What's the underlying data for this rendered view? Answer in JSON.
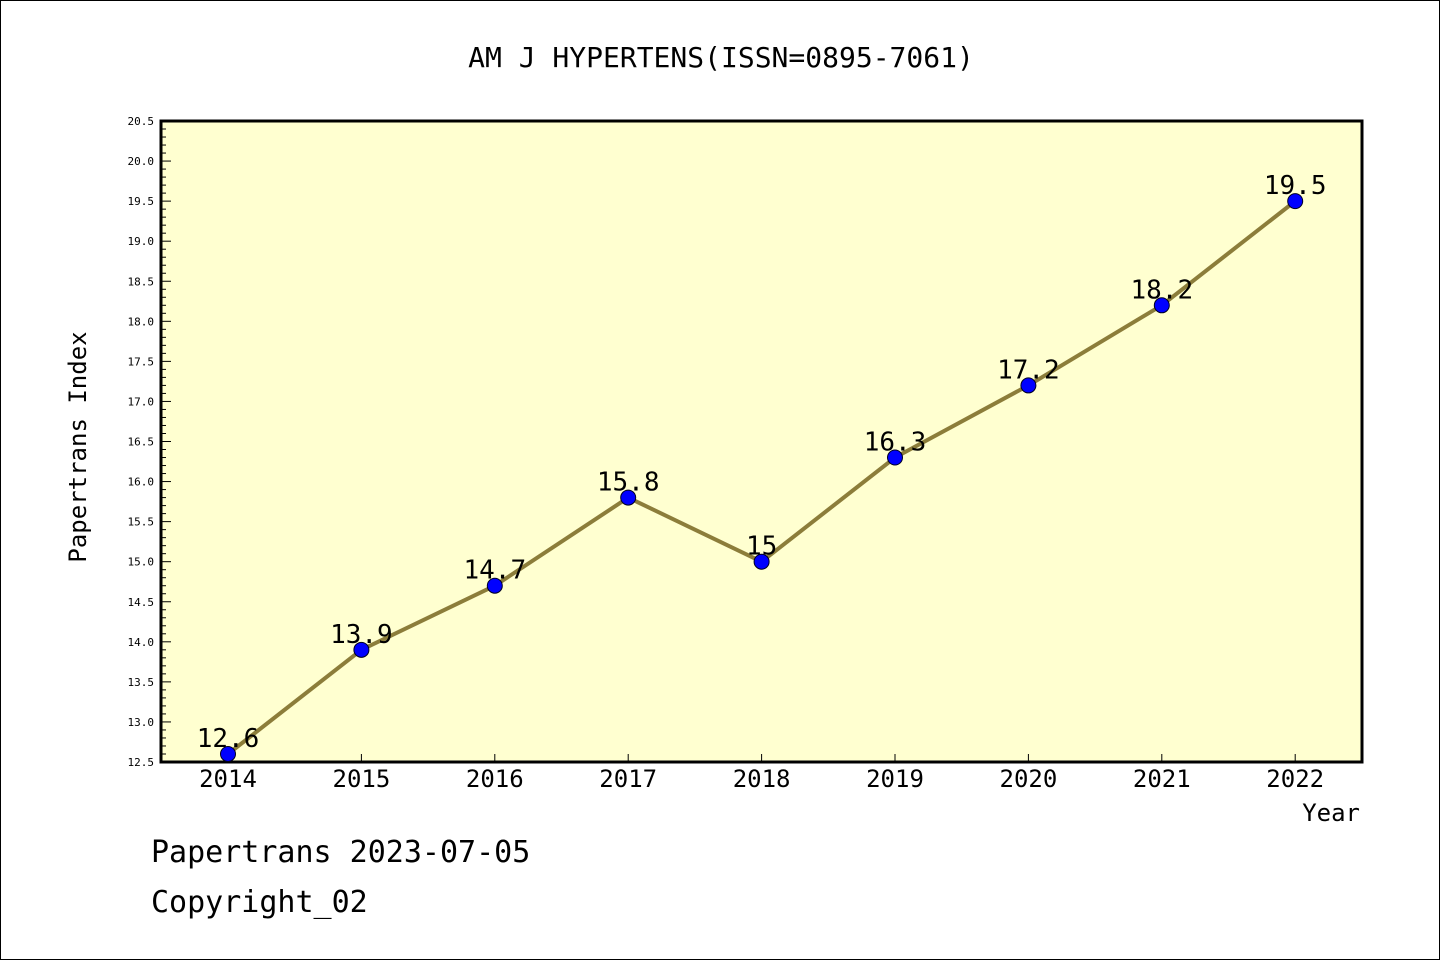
{
  "chart_data": {
    "type": "line",
    "title": "AM J HYPERTENS(ISSN=0895-7061)",
    "xlabel": "Year",
    "ylabel": "Papertrans Index",
    "categories": [
      "2014",
      "2015",
      "2016",
      "2017",
      "2018",
      "2019",
      "2020",
      "2021",
      "2022"
    ],
    "series": [
      {
        "values": [
          12.6,
          13.9,
          14.7,
          15.8,
          15,
          16.3,
          17.2,
          18.2,
          19.5
        ],
        "data_labels": [
          "12.6",
          "13.9",
          "14.7",
          "15.8",
          "15",
          "16.3",
          "17.2",
          "18.2",
          "19.5"
        ]
      }
    ],
    "ylim": [
      12.5,
      20.5
    ],
    "y_ticks": [
      "12.5",
      "13.0",
      "13.5",
      "14.0",
      "14.5",
      "15.0",
      "15.5",
      "16.0",
      "16.5",
      "17.0",
      "17.5",
      "18.0",
      "18.5",
      "19.0",
      "19.5",
      "20.0",
      "20.5"
    ],
    "grid": false,
    "legend": "none",
    "colors": {
      "plot_background": "#ffffd0",
      "line": "#8c7d3a",
      "marker": "#0000ff"
    }
  },
  "footer": {
    "line1": "Papertrans 2023-07-05",
    "line2": "Copyright_02"
  }
}
